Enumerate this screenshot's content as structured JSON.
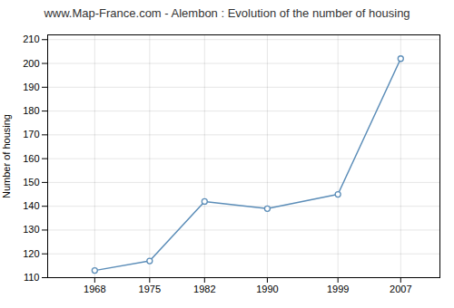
{
  "chart_data": {
    "type": "line",
    "title": "www.Map-France.com - Alembon : Evolution of the number of housing",
    "ylabel": "Number of housing",
    "x": [
      1968,
      1975,
      1982,
      1990,
      1999,
      2007
    ],
    "values": [
      113,
      117,
      142,
      139,
      145,
      202
    ],
    "color": "#5b8db8",
    "marker": "circle",
    "xlim": [
      1962,
      2012
    ],
    "xticks": [
      1968,
      1975,
      1982,
      1990,
      1999,
      2007
    ],
    "ylim": [
      110,
      212
    ],
    "yticks": [
      110,
      120,
      130,
      140,
      150,
      160,
      170,
      180,
      190,
      200,
      210
    ],
    "grid": true
  }
}
